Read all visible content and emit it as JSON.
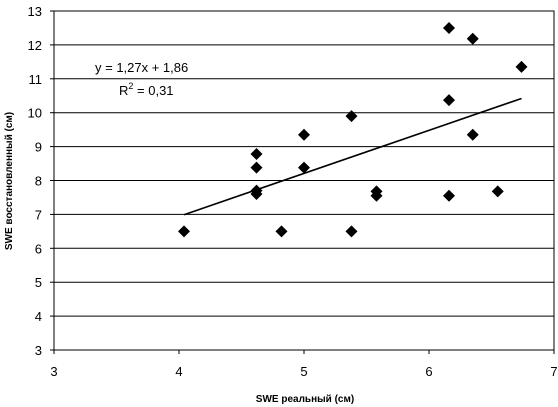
{
  "chart_data": {
    "type": "scatter",
    "xlabel": "SWE реальный (см)",
    "ylabel": "SWE восстановленный (см)",
    "xlim": [
      3,
      7
    ],
    "ylim": [
      3,
      13
    ],
    "xticks": [
      "3",
      "4",
      "5",
      "6",
      "7"
    ],
    "yticks": [
      "3",
      "4",
      "5",
      "6",
      "7",
      "8",
      "9",
      "10",
      "11",
      "12",
      "13"
    ],
    "grid": "horizontal",
    "legend": "none",
    "marker": "diamond",
    "marker_color": "#000000",
    "points": [
      {
        "x": 4.04,
        "y": 6.5
      },
      {
        "x": 4.62,
        "y": 8.78
      },
      {
        "x": 4.62,
        "y": 8.38
      },
      {
        "x": 4.62,
        "y": 7.7
      },
      {
        "x": 4.62,
        "y": 7.6
      },
      {
        "x": 4.82,
        "y": 6.5
      },
      {
        "x": 5.0,
        "y": 9.35
      },
      {
        "x": 5.0,
        "y": 8.38
      },
      {
        "x": 5.38,
        "y": 9.9
      },
      {
        "x": 5.38,
        "y": 6.5
      },
      {
        "x": 5.58,
        "y": 7.68
      },
      {
        "x": 5.58,
        "y": 7.55
      },
      {
        "x": 6.16,
        "y": 12.5
      },
      {
        "x": 6.16,
        "y": 10.37
      },
      {
        "x": 6.16,
        "y": 7.55
      },
      {
        "x": 6.35,
        "y": 12.18
      },
      {
        "x": 6.35,
        "y": 9.35
      },
      {
        "x": 6.55,
        "y": 7.68
      },
      {
        "x": 6.74,
        "y": 11.35
      }
    ],
    "trendline": {
      "slope": 1.27,
      "intercept": 1.86,
      "x_start": 4.04,
      "x_end": 6.74
    },
    "annotations": {
      "equation": "y = 1,27x + 1,86",
      "r2_prefix": "R",
      "r2_sup": "2",
      "r2_value": " = 0,31"
    }
  }
}
